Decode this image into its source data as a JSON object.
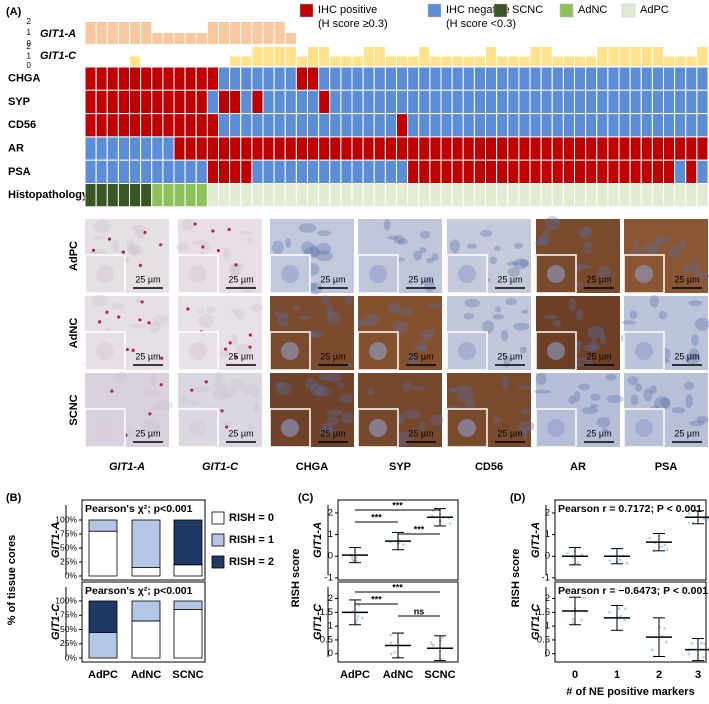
{
  "panel_a": {
    "label": "(A)",
    "legend": [
      {
        "lines": [
          "IHC positive",
          "(H score ≥0.3)"
        ],
        "color": "#c00000"
      },
      {
        "lines": [
          "IHC negative",
          "(H score <0.3)"
        ],
        "color": "#5b8ed6"
      },
      {
        "lines": [
          "SCNC"
        ],
        "color": "#375623"
      },
      {
        "lines": [
          "AdNC"
        ],
        "color": "#8fc15b"
      },
      {
        "lines": [
          "AdPC"
        ],
        "color": "#e2ecd2"
      }
    ],
    "rish_tracks": [
      {
        "name": "GIT1-A",
        "color": "#f8c8a0",
        "ylim": [
          0,
          2
        ],
        "yticks": [
          0,
          1,
          2
        ],
        "values": [
          2,
          2,
          2,
          2,
          2,
          2,
          1,
          1,
          1,
          1,
          1,
          2,
          2,
          2,
          2,
          2,
          2,
          2,
          1,
          0,
          0,
          0,
          0,
          0,
          0,
          0,
          0,
          0,
          0,
          0,
          0,
          0,
          0,
          0,
          0,
          0,
          0,
          0,
          0,
          0,
          0,
          0,
          0,
          0,
          0,
          0,
          0,
          0,
          0,
          0,
          0,
          0,
          0,
          0,
          0,
          0
        ]
      },
      {
        "name": "GIT1-C",
        "color": "#ffe28a",
        "ylim": [
          0,
          2
        ],
        "yticks": [
          0,
          1,
          2
        ],
        "values": [
          0,
          0,
          0,
          0,
          1,
          0,
          0,
          0,
          0,
          0,
          0,
          0,
          0,
          1,
          1,
          2,
          2,
          2,
          2,
          1,
          2,
          2,
          1,
          1,
          1,
          2,
          2,
          1,
          1,
          1,
          2,
          1,
          1,
          1,
          1,
          1,
          2,
          1,
          1,
          1,
          2,
          2,
          1,
          1,
          1,
          1,
          2,
          2,
          2,
          2,
          2,
          2,
          1,
          1,
          1,
          2
        ]
      }
    ],
    "ihc_rows": [
      {
        "name": "CHGA",
        "values": [
          1,
          1,
          1,
          1,
          1,
          1,
          1,
          1,
          1,
          1,
          1,
          1,
          0,
          0,
          0,
          0,
          0,
          0,
          0,
          1,
          1,
          0,
          0,
          0,
          0,
          0,
          0,
          0,
          0,
          0,
          0,
          0,
          0,
          0,
          0,
          0,
          0,
          0,
          0,
          0,
          0,
          0,
          0,
          0,
          0,
          0,
          0,
          0,
          0,
          0,
          0,
          0,
          0,
          0,
          0,
          0
        ]
      },
      {
        "name": "SYP",
        "values": [
          1,
          1,
          1,
          1,
          1,
          1,
          1,
          1,
          1,
          1,
          1,
          0,
          1,
          1,
          0,
          1,
          0,
          0,
          0,
          0,
          0,
          1,
          0,
          0,
          0,
          0,
          0,
          0,
          0,
          0,
          0,
          0,
          0,
          0,
          0,
          0,
          0,
          0,
          0,
          0,
          0,
          0,
          0,
          0,
          0,
          0,
          0,
          0,
          0,
          0,
          0,
          0,
          0,
          0,
          0,
          0
        ]
      },
      {
        "name": "CD56",
        "values": [
          1,
          1,
          1,
          1,
          1,
          1,
          1,
          1,
          1,
          1,
          1,
          1,
          0,
          0,
          0,
          0,
          0,
          0,
          0,
          0,
          0,
          0,
          0,
          0,
          0,
          0,
          0,
          0,
          1,
          0,
          0,
          0,
          0,
          0,
          0,
          0,
          0,
          0,
          0,
          0,
          0,
          0,
          0,
          0,
          0,
          0,
          0,
          0,
          0,
          0,
          0,
          0,
          0,
          0,
          0,
          0
        ]
      },
      {
        "name": "AR",
        "values": [
          0,
          0,
          0,
          0,
          0,
          0,
          0,
          0,
          1,
          1,
          1,
          1,
          1,
          1,
          1,
          1,
          1,
          1,
          1,
          1,
          1,
          1,
          1,
          1,
          1,
          1,
          1,
          1,
          1,
          1,
          1,
          1,
          1,
          1,
          1,
          1,
          1,
          1,
          1,
          1,
          1,
          1,
          1,
          1,
          1,
          1,
          1,
          1,
          1,
          1,
          1,
          1,
          1,
          1,
          1,
          1
        ]
      },
      {
        "name": "PSA",
        "values": [
          0,
          0,
          0,
          0,
          0,
          0,
          0,
          0,
          0,
          0,
          0,
          1,
          1,
          1,
          1,
          0,
          0,
          0,
          0,
          0,
          0,
          0,
          0,
          0,
          0,
          0,
          0,
          0,
          0,
          1,
          1,
          1,
          1,
          1,
          1,
          1,
          1,
          1,
          1,
          1,
          1,
          1,
          1,
          1,
          1,
          1,
          1,
          1,
          1,
          1,
          1,
          1,
          1,
          0,
          1,
          0
        ]
      }
    ],
    "histopathology": {
      "name": "Histopathology",
      "values": [
        "SCNC",
        "SCNC",
        "SCNC",
        "SCNC",
        "SCNC",
        "SCNC",
        "AdNC",
        "AdNC",
        "AdNC",
        "AdNC",
        "AdNC",
        "AdPC",
        "AdPC",
        "AdPC",
        "AdPC",
        "AdPC",
        "AdPC",
        "AdPC",
        "AdPC",
        "AdPC",
        "AdPC",
        "AdPC",
        "AdPC",
        "AdPC",
        "AdPC",
        "AdPC",
        "AdPC",
        "AdPC",
        "AdPC",
        "AdPC",
        "AdPC",
        "AdPC",
        "AdPC",
        "AdPC",
        "AdPC",
        "AdPC",
        "AdPC",
        "AdPC",
        "AdPC",
        "AdPC",
        "AdPC",
        "AdPC",
        "AdPC",
        "AdPC",
        "AdPC",
        "AdPC",
        "AdPC",
        "AdPC",
        "AdPC",
        "AdPC",
        "AdPC",
        "AdPC",
        "AdPC",
        "AdPC",
        "AdPC",
        "AdPC"
      ]
    },
    "micrographs": {
      "rows": [
        "AdPC",
        "AdNC",
        "SCNC"
      ],
      "columns": [
        "GIT1-A",
        "GIT1-C",
        "CHGA",
        "SYP",
        "CD56",
        "AR",
        "PSA"
      ],
      "scale_bar": "25 µm"
    }
  },
  "panel_b": {
    "label": "(B)",
    "ylabel": "% of tissue cores",
    "categories": [
      "AdPC",
      "AdNC",
      "SCNC"
    ],
    "series_names": [
      "RISH = 0",
      "RISH = 1",
      "RISH = 2"
    ],
    "series_colors": [
      "#ffffff",
      "#b4c7e7",
      "#1f3864"
    ],
    "ylim": [
      0,
      100
    ],
    "yticks": [
      {
        "value": 0,
        "label": "0%"
      },
      {
        "value": 25,
        "label": "25%"
      },
      {
        "value": 50,
        "label": "50%"
      },
      {
        "value": 75,
        "label": "75%"
      },
      {
        "value": 100,
        "label": "100%"
      }
    ],
    "panels": [
      {
        "label": "GIT1-A",
        "annotation": "Pearson's χ²; p<0.001",
        "series": [
          [
            80,
            15,
            20
          ],
          [
            20,
            85,
            0
          ],
          [
            0,
            0,
            80
          ]
        ]
      },
      {
        "label": "GIT1-C",
        "annotation": "Pearson's χ²; p<0.001",
        "series": [
          [
            0,
            65,
            85
          ],
          [
            45,
            35,
            15
          ],
          [
            55,
            0,
            0
          ]
        ]
      }
    ]
  },
  "panel_c": {
    "label": "(C)",
    "ylabel": "RISH score",
    "categories": [
      "AdPC",
      "AdNC",
      "SCNC"
    ],
    "panels": [
      {
        "label": "GIT1-A",
        "ylim": [
          -1.1,
          2.6
        ],
        "yticks": [
          -1,
          0,
          1,
          2
        ],
        "mean": [
          0.05,
          0.7,
          1.8
        ],
        "sd": [
          0.35,
          0.4,
          0.4
        ],
        "significance": [
          {
            "from": 0,
            "to": 2,
            "text": "***"
          },
          {
            "from": 0,
            "to": 1,
            "text": "***"
          },
          {
            "from": 1,
            "to": 2,
            "text": "***"
          }
        ]
      },
      {
        "label": "GIT1-C",
        "ylim": [
          -0.3,
          2.6
        ],
        "yticks": [
          0,
          0.5,
          1,
          1.5,
          2
        ],
        "mean": [
          1.5,
          0.3,
          0.2
        ],
        "sd": [
          0.45,
          0.45,
          0.45
        ],
        "significance": [
          {
            "from": 0,
            "to": 2,
            "text": "***"
          },
          {
            "from": 0,
            "to": 1,
            "text": "***"
          },
          {
            "from": 1,
            "to": 2,
            "text": "ns"
          }
        ]
      }
    ]
  },
  "panel_d": {
    "label": "(D)",
    "ylabel": "RISH score",
    "xlabel": "# of NE positive markers",
    "categories": [
      "0",
      "1",
      "2",
      "3"
    ],
    "panels": [
      {
        "label": "GIT1-A",
        "annotation": "Pearson r = 0.7172; P < 0.001",
        "ylim": [
          -1.1,
          2.6
        ],
        "yticks": [
          -1,
          0,
          1,
          2
        ],
        "mean": [
          0,
          0,
          0.65,
          1.8
        ],
        "sd": [
          0.4,
          0.35,
          0.4,
          0.3
        ]
      },
      {
        "label": "GIT1-C",
        "annotation": "Pearson r = −0.6473; P < 0.001",
        "ylim": [
          -0.3,
          2.6
        ],
        "yticks": [
          0,
          0.5,
          1,
          1.5,
          2
        ],
        "mean": [
          1.55,
          1.3,
          0.6,
          0.15
        ],
        "sd": [
          0.5,
          0.45,
          0.7,
          0.4
        ]
      }
    ]
  }
}
